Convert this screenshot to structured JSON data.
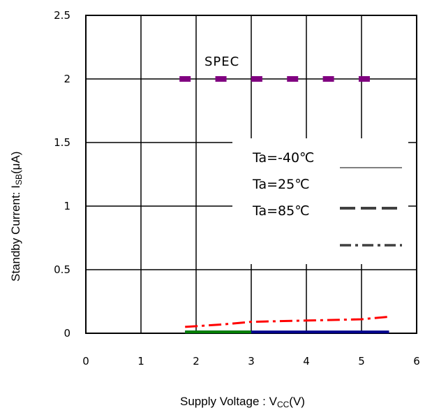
{
  "chart_data": {
    "type": "line",
    "xlabel_main": "Supply Voltage : V",
    "xlabel_sub": "CC",
    "xlabel_tail": "(V)",
    "ylabel_main": "Standby Current: I",
    "ylabel_sub": "SB",
    "ylabel_tail": "(μA)",
    "xlim": [
      0,
      6
    ],
    "ylim": [
      0,
      2.5
    ],
    "xticks": [
      "0",
      "1",
      "2",
      "3",
      "4",
      "5",
      "6"
    ],
    "yticks": [
      "0",
      "0.5",
      "1",
      "1.5",
      "2",
      "2.5"
    ],
    "grid": true,
    "spec": {
      "label": "SPEC",
      "color": "#800080",
      "x": [
        1.8,
        2.45,
        3.1,
        3.75,
        4.4,
        5.05
      ],
      "y": [
        2,
        2,
        2,
        2,
        2,
        2
      ]
    },
    "series": [
      {
        "name": "Ta=-40℃",
        "color": "#008000",
        "style": "solid",
        "x": [
          1.8,
          3.0
        ],
        "y": [
          0.01,
          0.01
        ]
      },
      {
        "name": "Ta=25℃",
        "color": "#00008b",
        "style": "dash",
        "x": [
          1.8,
          5.5
        ],
        "y": [
          0.01,
          0.01
        ]
      },
      {
        "name": "Ta=85℃",
        "color": "#ff0000",
        "style": "dashdot",
        "x": [
          1.8,
          2.5,
          3.0,
          4.0,
          5.0,
          5.5
        ],
        "y": [
          0.05,
          0.07,
          0.09,
          0.1,
          0.11,
          0.13
        ]
      }
    ],
    "legend_placement": "center-right"
  }
}
